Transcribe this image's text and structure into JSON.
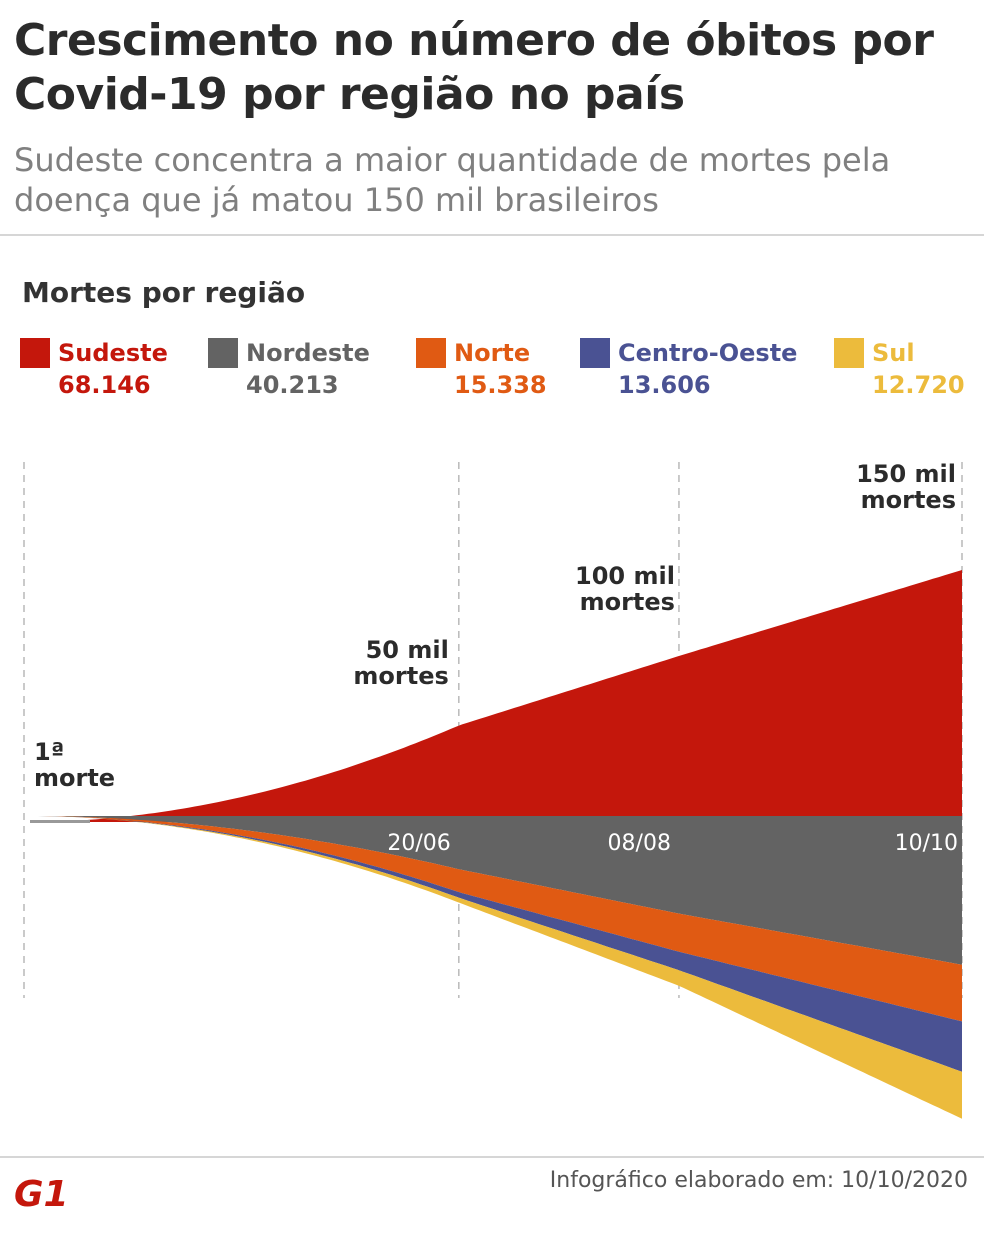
{
  "header": {
    "title": "Crescimento no número de óbitos por Covid-19 por região no país",
    "subtitle": "Sudeste concentra a maior quantidade de mortes pela doença que já matou 150 mil brasileiros"
  },
  "legend": {
    "title": "Mortes por região",
    "items": [
      {
        "name": "Sudeste",
        "value": "68.146",
        "color": "#c4170c"
      },
      {
        "name": "Nordeste",
        "value": "40.213",
        "color": "#636363"
      },
      {
        "name": "Norte",
        "value": "15.338",
        "color": "#e05a13"
      },
      {
        "name": "Centro-Oeste",
        "value": "13.606",
        "color": "#4a5293"
      },
      {
        "name": "Sul",
        "value": "12.720",
        "color": "#ecbb3c"
      }
    ]
  },
  "chart_data": {
    "type": "area",
    "layout": "streamgraph",
    "title": "Mortes por região",
    "x": [
      "1ª morte",
      "20/06",
      "08/08",
      "10/10"
    ],
    "x_days": [
      0,
      95,
      144,
      207
    ],
    "tick_labels": [
      "20/06",
      "08/08",
      "10/10"
    ],
    "series": [
      {
        "name": "Sudeste",
        "values": [
          1,
          26100,
          44900,
          68146
        ]
      },
      {
        "name": "Nordeste",
        "values": [
          0,
          14400,
          26400,
          40213
        ]
      },
      {
        "name": "Norte",
        "values": [
          0,
          6200,
          10300,
          15338
        ]
      },
      {
        "name": "Centro-Oeste",
        "values": [
          0,
          1500,
          5000,
          13606
        ]
      },
      {
        "name": "Sul",
        "values": [
          0,
          1300,
          4200,
          12720
        ]
      }
    ],
    "annotations": [
      {
        "text_lines": [
          "1ª",
          "morte"
        ],
        "day": 0
      },
      {
        "text_lines": [
          "50 mil",
          "mortes"
        ],
        "day": 95
      },
      {
        "text_lines": [
          "100 mil",
          "mortes"
        ],
        "day": 144
      },
      {
        "text_lines": [
          "150 mil",
          "mortes"
        ],
        "day": 207
      }
    ],
    "milestone_days": [
      95,
      144,
      207
    ]
  },
  "footer": {
    "logo_text": "G1",
    "credit": "Infográfico elaborado em: 10/10/2020"
  }
}
